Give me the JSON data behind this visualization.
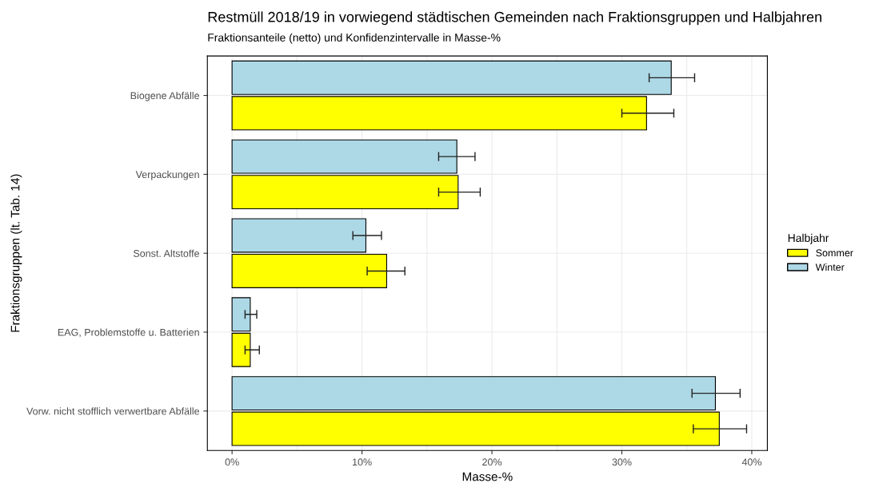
{
  "chart_data": {
    "type": "bar",
    "orientation": "horizontal",
    "title": "Restmüll 2018/19 in vorwiegend städtischen Gemeinden nach Fraktionsgruppen und Halbjahren",
    "subtitle": "Fraktionsanteile (netto) und Konfidenzintervalle in Masse-%",
    "xlabel": "Masse-%",
    "ylabel": "Fraktionsgruppen (lt. Tab. 14)",
    "legend_title": "Halbjahr",
    "categories": [
      "Biogene Abfälle",
      "Verpackungen",
      "Sonst. Altstoffe",
      "EAG, Problemstoffe u. Batterien",
      "Vorw. nicht stofflich verwertbare Abfälle"
    ],
    "series": [
      {
        "name": "Sommer",
        "color": "#ffff00",
        "values": [
          31.9,
          17.4,
          11.9,
          1.4,
          37.5
        ],
        "errors": [
          [
            30.0,
            34.0
          ],
          [
            15.9,
            19.1
          ],
          [
            10.4,
            13.3
          ],
          [
            1.0,
            2.1
          ],
          [
            35.5,
            39.6
          ]
        ]
      },
      {
        "name": "Winter",
        "color": "#add8e6",
        "values": [
          33.8,
          17.3,
          10.3,
          1.4,
          37.2
        ],
        "errors": [
          [
            32.1,
            35.6
          ],
          [
            15.9,
            18.7
          ],
          [
            9.3,
            11.5
          ],
          [
            1.0,
            1.9
          ],
          [
            35.4,
            39.1
          ]
        ]
      }
    ],
    "xlim": [
      -1.9,
      41.2
    ],
    "xticks": [
      {
        "value": 0,
        "label": "0%"
      },
      {
        "value": 5,
        "label": null
      },
      {
        "value": 10,
        "label": "10%"
      },
      {
        "value": 15,
        "label": null
      },
      {
        "value": 20,
        "label": "20%"
      },
      {
        "value": 25,
        "label": null
      },
      {
        "value": 30,
        "label": "30%"
      },
      {
        "value": 35,
        "label": null
      },
      {
        "value": 40,
        "label": "40%"
      }
    ],
    "grid": true,
    "legend": "right"
  }
}
